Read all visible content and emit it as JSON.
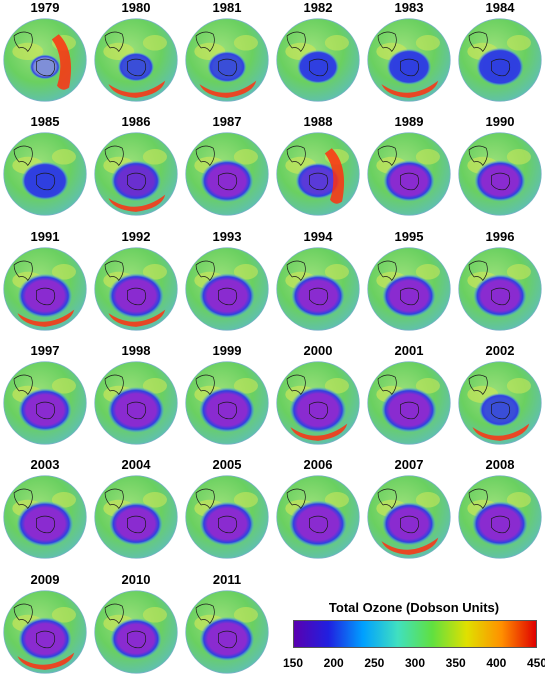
{
  "panels": [
    {
      "year": "1979",
      "hole": 0.25,
      "hole_color": "#7f8fd8",
      "band": "east"
    },
    {
      "year": "1980",
      "hole": 0.35,
      "hole_color": "#3a4ed8",
      "band": "south"
    },
    {
      "year": "1981",
      "hole": 0.4,
      "hole_color": "#3a4ed8",
      "band": "south"
    },
    {
      "year": "1982",
      "hole": 0.45,
      "hole_color": "#2f3fe0",
      "band": "none"
    },
    {
      "year": "1983",
      "hole": 0.5,
      "hole_color": "#2f3fe0",
      "band": "south"
    },
    {
      "year": "1984",
      "hole": 0.55,
      "hole_color": "#2f3fe0",
      "band": "none"
    },
    {
      "year": "1985",
      "hole": 0.55,
      "hole_color": "#2f3fe0",
      "band": "none"
    },
    {
      "year": "1986",
      "hole": 0.6,
      "hole_color": "#6a2fd0",
      "band": "south"
    },
    {
      "year": "1987",
      "hole": 0.65,
      "hole_color": "#8a2bd0",
      "band": "none"
    },
    {
      "year": "1988",
      "hole": 0.5,
      "hole_color": "#5a3ad8",
      "band": "east"
    },
    {
      "year": "1989",
      "hole": 0.62,
      "hole_color": "#8a2bd0",
      "band": "none"
    },
    {
      "year": "1990",
      "hole": 0.62,
      "hole_color": "#8a2bd0",
      "band": "none"
    },
    {
      "year": "1991",
      "hole": 0.68,
      "hole_color": "#8a2bd0",
      "band": "south"
    },
    {
      "year": "1992",
      "hole": 0.7,
      "hole_color": "#8a2bd0",
      "band": "south"
    },
    {
      "year": "1993",
      "hole": 0.7,
      "hole_color": "#8a2bd0",
      "band": "none"
    },
    {
      "year": "1994",
      "hole": 0.66,
      "hole_color": "#8a2bd0",
      "band": "none"
    },
    {
      "year": "1995",
      "hole": 0.66,
      "hole_color": "#8a2bd0",
      "band": "none"
    },
    {
      "year": "1996",
      "hole": 0.66,
      "hole_color": "#8a2bd0",
      "band": "none"
    },
    {
      "year": "1997",
      "hole": 0.66,
      "hole_color": "#8a2bd0",
      "band": "none"
    },
    {
      "year": "1998",
      "hole": 0.72,
      "hole_color": "#8a2bd0",
      "band": "none"
    },
    {
      "year": "1999",
      "hole": 0.7,
      "hole_color": "#8a2bd0",
      "band": "none"
    },
    {
      "year": "2000",
      "hole": 0.72,
      "hole_color": "#8a2bd0",
      "band": "south"
    },
    {
      "year": "2001",
      "hole": 0.7,
      "hole_color": "#8a2bd0",
      "band": "none"
    },
    {
      "year": "2002",
      "hole": 0.45,
      "hole_color": "#3a4ed8",
      "band": "south"
    },
    {
      "year": "2003",
      "hole": 0.72,
      "hole_color": "#8a2bd0",
      "band": "none"
    },
    {
      "year": "2004",
      "hole": 0.66,
      "hole_color": "#8a2bd0",
      "band": "none"
    },
    {
      "year": "2005",
      "hole": 0.68,
      "hole_color": "#8a2bd0",
      "band": "none"
    },
    {
      "year": "2006",
      "hole": 0.74,
      "hole_color": "#8a2bd0",
      "band": "none"
    },
    {
      "year": "2007",
      "hole": 0.66,
      "hole_color": "#8a2bd0",
      "band": "south"
    },
    {
      "year": "2008",
      "hole": 0.7,
      "hole_color": "#8a2bd0",
      "band": "none"
    },
    {
      "year": "2009",
      "hole": 0.66,
      "hole_color": "#8a2bd0",
      "band": "south"
    },
    {
      "year": "2010",
      "hole": 0.62,
      "hole_color": "#8a2bd0",
      "band": "none"
    },
    {
      "year": "2011",
      "hole": 0.68,
      "hole_color": "#8a2bd0",
      "band": "none"
    }
  ],
  "legend": {
    "title": "Total Ozone (Dobson Units)",
    "ticks": [
      "150",
      "200",
      "250",
      "300",
      "350",
      "400",
      "450"
    ],
    "colors": [
      "#5a00b0",
      "#2020e0",
      "#00a0ff",
      "#40e0c0",
      "#60e040",
      "#e0e000",
      "#ff9000",
      "#e00000"
    ]
  }
}
